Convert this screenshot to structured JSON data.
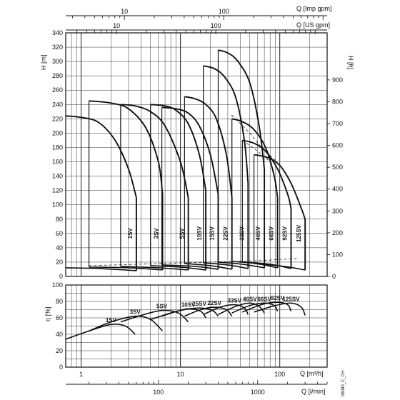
{
  "chart_data": [
    {
      "type": "line",
      "x_scale": "log",
      "x_range_m3h": [
        0.7,
        300
      ],
      "top_axes": [
        {
          "label": "Q [Imp gpm]",
          "ticks": [
            "10",
            "100"
          ],
          "tick_values": [
            10,
            100
          ]
        },
        {
          "label": "Q [US gpm]",
          "ticks": [
            "10",
            "100"
          ],
          "tick_values": [
            10,
            100
          ]
        }
      ],
      "ylabel_left": "H [m]",
      "ylabel_right": "H [ft]",
      "ylim_left": [
        0,
        340
      ],
      "ylim_right_ft": [
        0,
        900
      ],
      "yticks_left": [
        0,
        20,
        40,
        60,
        80,
        100,
        120,
        140,
        160,
        180,
        200,
        220,
        240,
        260,
        280,
        300,
        320,
        340
      ],
      "yticks_right": [
        0,
        100,
        200,
        300,
        400,
        500,
        600,
        700,
        800,
        900
      ],
      "series": [
        {
          "name": "1SV",
          "q_m3h": [
            0.7,
            1.0,
            1.5,
            2.2,
            3.0,
            3.6
          ],
          "h_m": [
            224,
            222,
            215,
            190,
            150,
            110
          ]
        },
        {
          "name": "3SV",
          "q_m3h": [
            1.2,
            2.0,
            3.0,
            4.5,
            6.0,
            6.6
          ],
          "h_m": [
            245,
            242,
            234,
            207,
            160,
            115
          ]
        },
        {
          "name": "5SV",
          "q_m3h": [
            2.5,
            3.5,
            5.0,
            7.0,
            10.0,
            12.0
          ],
          "h_m": [
            240,
            238,
            230,
            210,
            160,
            110
          ]
        },
        {
          "name": "10SV",
          "q_m3h": [
            5.0,
            7.0,
            9.0,
            12.0,
            15.5,
            18.0
          ],
          "h_m": [
            240,
            238,
            232,
            213,
            170,
            120
          ]
        },
        {
          "name": "15SV",
          "q_m3h": [
            6.5,
            9.0,
            12.0,
            15.5,
            20.0,
            24.0
          ],
          "h_m": [
            236,
            234,
            228,
            210,
            170,
            115
          ]
        },
        {
          "name": "22SV",
          "q_m3h": [
            11.0,
            14.0,
            18.0,
            23.0,
            29.0,
            33.0
          ],
          "h_m": [
            251,
            248,
            240,
            220,
            170,
            110
          ]
        },
        {
          "name": "33SV",
          "q_m3h": [
            17.0,
            22.0,
            28.0,
            36.0,
            44.0,
            48.0
          ],
          "h_m": [
            294,
            290,
            278,
            250,
            190,
            130
          ]
        },
        {
          "name": "46SV",
          "q_m3h": [
            24.0,
            30.0,
            38.0,
            50.0,
            62.0,
            70.0
          ],
          "h_m": [
            316,
            312,
            300,
            270,
            210,
            150
          ]
        },
        {
          "name": "66SV",
          "q_m3h": [
            33.0,
            42.0,
            55.0,
            72.0,
            88.0,
            95.0
          ],
          "h_m": [
            220,
            216,
            205,
            180,
            140,
            110
          ]
        },
        {
          "name": "92SV",
          "q_m3h": [
            42.0,
            55.0,
            72.0,
            95.0,
            120.0,
            130.0
          ],
          "h_m": [
            190,
            186,
            175,
            150,
            115,
            95
          ]
        },
        {
          "name": "125SV",
          "q_m3h": [
            55.0,
            75.0,
            100.0,
            130.0,
            165.0,
            180.0
          ],
          "h_m": [
            170,
            166,
            155,
            130,
            95,
            80
          ]
        }
      ],
      "min_head_curves": [
        {
          "name": "1SV",
          "q_m3h": [
            0.7,
            1.5,
            3.6
          ],
          "h_m": [
            12,
            11,
            8
          ]
        },
        {
          "name": "3SV",
          "q_m3h": [
            1.2,
            3.0,
            6.6
          ],
          "h_m": [
            13,
            12,
            9
          ]
        },
        {
          "name": "5SV",
          "q_m3h": [
            2.5,
            6.0,
            12.0
          ],
          "h_m": [
            14,
            12,
            9
          ]
        },
        {
          "name": "10SV",
          "q_m3h": [
            5.0,
            10.0,
            18.0
          ],
          "h_m": [
            15,
            13,
            9
          ]
        },
        {
          "name": "15SV",
          "q_m3h": [
            6.5,
            14.0,
            24.0
          ],
          "h_m": [
            16,
            14,
            10
          ]
        },
        {
          "name": "22SV",
          "q_m3h": [
            11.0,
            20.0,
            33.0
          ],
          "h_m": [
            18,
            15,
            10
          ]
        },
        {
          "name": "33SV",
          "q_m3h": [
            17.0,
            30.0,
            48.0
          ],
          "h_m": [
            19,
            16,
            11
          ]
        },
        {
          "name": "46SV",
          "q_m3h": [
            24.0,
            42.0,
            70.0
          ],
          "h_m": [
            20,
            17,
            12
          ]
        },
        {
          "name": "66SV",
          "q_m3h": [
            33.0,
            58.0,
            95.0
          ],
          "h_m": [
            21,
            18,
            12
          ]
        },
        {
          "name": "92SV",
          "q_m3h": [
            42.0,
            80.0,
            130.0
          ],
          "h_m": [
            20,
            17,
            11
          ]
        },
        {
          "name": "125SV",
          "q_m3h": [
            55.0,
            110.0,
            180.0
          ],
          "h_m": [
            18,
            14,
            9
          ]
        }
      ],
      "dashed_boundaries": [
        {
          "q_m3h": [
            1.2,
            1.2
          ],
          "h_m": [
            15,
            245
          ]
        },
        {
          "q_m3h": [
            1.2,
            62.0,
            150.0
          ],
          "h_m": [
            15,
            22,
            25
          ]
        },
        {
          "q_m3h": [
            2.5,
            2.5
          ],
          "h_m": [
            14,
            230
          ]
        },
        {
          "q_m3h": [
            5.0,
            5.0
          ],
          "h_m": [
            15,
            230
          ]
        },
        {
          "q_m3h": [
            11.0,
            11.0
          ],
          "h_m": [
            18,
            240
          ]
        },
        {
          "q_m3h": [
            24.0,
            24.0
          ],
          "h_m": [
            20,
            300
          ]
        },
        {
          "q_m3h": [
            33.0,
            33.0
          ],
          "h_m": [
            21,
            225
          ]
        },
        {
          "q_m3h": [
            42.0,
            42.0
          ],
          "h_m": [
            20,
            190
          ]
        },
        {
          "q_m3h": [
            33.0,
            50.0,
            70.0,
            95.0
          ],
          "h_m": [
            225,
            200,
            175,
            160
          ]
        },
        {
          "q_m3h": [
            42.0,
            60.0,
            80.0
          ],
          "h_m": [
            190,
            175,
            160
          ]
        }
      ]
    },
    {
      "type": "line",
      "x_scale": "log",
      "x_range_m3h": [
        0.7,
        300
      ],
      "ylabel": "η [%]",
      "ylim": [
        0,
        100
      ],
      "yticks": [
        0,
        20,
        40,
        60,
        80,
        100
      ],
      "xticks_m3h": [
        1,
        10,
        100
      ],
      "xlabel_m3h": "Q [m³/h]",
      "xticks_lmin": [
        100,
        1000
      ],
      "xlabel_lmin": "Q [l/min]",
      "series": [
        {
          "name": "1SV",
          "q_m3h": [
            0.7,
            1.2,
            2.0,
            2.8,
            3.5
          ],
          "eta": [
            34,
            44,
            52,
            50,
            40
          ]
        },
        {
          "name": "3SV",
          "q_m3h": [
            1.2,
            2.0,
            3.5,
            5.0,
            6.6
          ],
          "eta": [
            44,
            55,
            62,
            58,
            44
          ]
        },
        {
          "name": "5SV",
          "q_m3h": [
            2.5,
            4.0,
            6.5,
            9.5,
            12.0
          ],
          "eta": [
            55,
            63,
            69,
            66,
            55
          ]
        },
        {
          "name": "10SV",
          "q_m3h": [
            5.0,
            8.0,
            12.0,
            16.0,
            18.0
          ],
          "eta": [
            58,
            66,
            71,
            68,
            60
          ]
        },
        {
          "name": "15SV",
          "q_m3h": [
            6.5,
            10.0,
            15.5,
            21.0,
            24.0
          ],
          "eta": [
            62,
            69,
            72,
            69,
            62
          ]
        },
        {
          "name": "22SV",
          "q_m3h": [
            11.0,
            16.0,
            22.0,
            29.0,
            33.0
          ],
          "eta": [
            62,
            70,
            73,
            70,
            62
          ]
        },
        {
          "name": "33SV",
          "q_m3h": [
            17.0,
            25.0,
            35.0,
            44.0,
            48.0
          ],
          "eta": [
            64,
            73,
            76,
            72,
            64
          ]
        },
        {
          "name": "46SV",
          "q_m3h": [
            24.0,
            36.0,
            50.0,
            62.0,
            70.0
          ],
          "eta": [
            64,
            74,
            78,
            74,
            66
          ]
        },
        {
          "name": "66SV",
          "q_m3h": [
            33.0,
            50.0,
            70.0,
            88.0,
            95.0
          ],
          "eta": [
            66,
            75,
            78,
            75,
            68
          ]
        },
        {
          "name": "92SV",
          "q_m3h": [
            42.0,
            65.0,
            95.0,
            120.0,
            130.0
          ],
          "eta": [
            67,
            76,
            79,
            76,
            68
          ]
        },
        {
          "name": "125SV",
          "q_m3h": [
            55.0,
            90.0,
            130.0,
            165.0,
            180.0
          ],
          "eta": [
            67,
            75,
            78,
            73,
            63
          ]
        }
      ]
    }
  ],
  "figure_code": "06080_C_CH"
}
